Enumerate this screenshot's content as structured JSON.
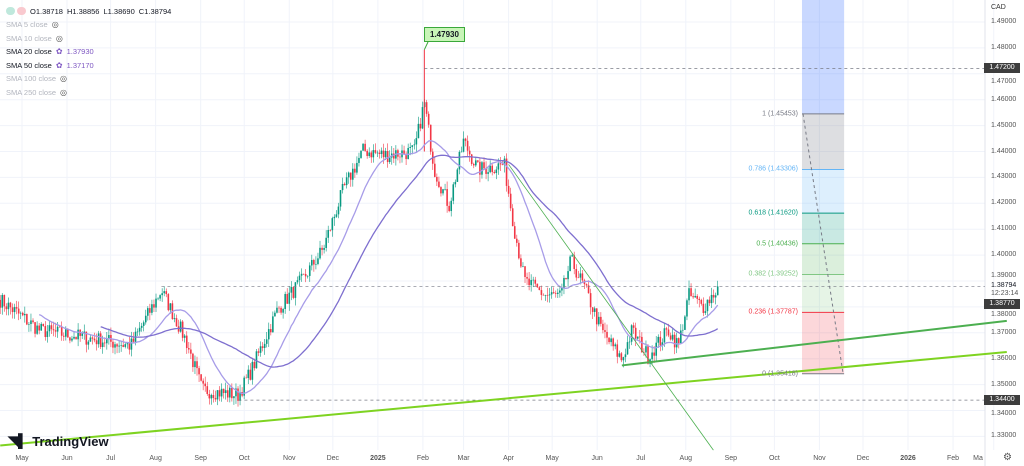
{
  "legend": {
    "ohlc": {
      "open": "O1.38718",
      "high": "H1.38856",
      "low": "L1.38690",
      "close": "C1.38794"
    },
    "indicators": [
      {
        "label": "SMA 5 close",
        "value": "",
        "visible": false
      },
      {
        "label": "SMA 10 close",
        "value": "",
        "visible": false
      },
      {
        "label": "SMA 20 close",
        "value": "1.37930",
        "visible": true
      },
      {
        "label": "SMA 50 close",
        "value": "1.37170",
        "visible": true
      },
      {
        "label": "SMA 100 close",
        "value": "",
        "visible": false
      },
      {
        "label": "SMA 250 close",
        "value": "",
        "visible": false
      }
    ]
  },
  "logo": "TradingView",
  "currency": "CAD",
  "callout": "1.47930",
  "price_axis": {
    "ticks": [
      "1.49000",
      "1.48000",
      "1.47000",
      "1.46000",
      "1.45000",
      "1.44000",
      "1.43000",
      "1.42000",
      "1.41000",
      "1.40000",
      "1.39000",
      "1.38000",
      "1.37000",
      "1.36000",
      "1.35000",
      "1.34000",
      "1.33000"
    ],
    "markers": {
      "high_line": "1.47200",
      "last_price": "1.38794",
      "countdown": "12:23:14",
      "sma": "1.38770",
      "low_line": "1.34400"
    }
  },
  "time_axis": [
    "May",
    "Jun",
    "Jul",
    "Aug",
    "Sep",
    "Oct",
    "Nov",
    "Dec",
    "2025",
    "Feb",
    "Mar",
    "Apr",
    "May",
    "Jun",
    "Jul",
    "Aug",
    "Sep",
    "Oct",
    "Nov",
    "Dec",
    "2026",
    "Feb",
    "Ma"
  ],
  "colors": {
    "up": "#089981",
    "down": "#f23645",
    "sma20": "#a79ce8",
    "sma50": "#7e6fcf",
    "trend_light": "#7ed321",
    "trend_dark": "#4caf50"
  },
  "fib": [
    {
      "label": "1 (1.45453)",
      "level": 1.45453,
      "color": "#787b86",
      "fill": "rgba(120,123,134,0.25)"
    },
    {
      "label": "0.786 (1.43306)",
      "level": 1.43306,
      "color": "#64b5f6",
      "fill": "rgba(100,181,246,0.22)"
    },
    {
      "label": "0.618 (1.41620)",
      "level": 1.4162,
      "color": "#089981",
      "fill": "rgba(8,153,129,0.22)"
    },
    {
      "label": "0.5 (1.40436)",
      "level": 1.40436,
      "color": "#4caf50",
      "fill": "rgba(76,175,80,0.2)"
    },
    {
      "label": "0.382 (1.39252)",
      "level": 1.39252,
      "color": "#81c784",
      "fill": "rgba(129,199,132,0.2)"
    },
    {
      "label": "0.236 (1.37787)",
      "level": 1.37787,
      "color": "#f23645",
      "fill": "rgba(242,54,69,0.2)"
    },
    {
      "label": "0 (1.35418)",
      "level": 1.35418,
      "color": "#787b86",
      "fill": ""
    }
  ],
  "chart_data": {
    "type": "candlestick",
    "symbol_quote": "CAD",
    "ylim": [
      1.325,
      1.495
    ],
    "xlim": [
      "2024-04-16",
      "2026-03-10"
    ],
    "price_path": [
      [
        "2024-04-16",
        1.3827
      ],
      [
        "2024-05-13",
        1.371
      ],
      [
        "2024-06-24",
        1.3672
      ],
      [
        "2024-07-15",
        1.365
      ],
      [
        "2024-08-05",
        1.3865
      ],
      [
        "2024-08-22",
        1.367
      ],
      [
        "2024-09-02",
        1.348
      ],
      [
        "2024-09-27",
        1.346
      ],
      [
        "2024-10-06",
        1.3556
      ],
      [
        "2024-10-24",
        1.379
      ],
      [
        "2024-11-10",
        1.3904
      ],
      [
        "2024-11-24",
        1.402
      ],
      [
        "2024-12-08",
        1.425
      ],
      [
        "2024-12-22",
        1.4405
      ],
      [
        "2025-01-05",
        1.4386
      ],
      [
        "2025-01-26",
        1.44
      ],
      [
        "2025-02-02",
        1.459
      ],
      [
        "2025-02-09",
        1.433
      ],
      [
        "2025-02-19",
        1.419
      ],
      [
        "2025-03-01",
        1.444
      ],
      [
        "2025-03-11",
        1.433
      ],
      [
        "2025-03-29",
        1.435
      ],
      [
        "2025-04-05",
        1.41
      ],
      [
        "2025-04-12",
        1.39
      ],
      [
        "2025-04-26",
        1.3846
      ],
      [
        "2025-05-07",
        1.384
      ],
      [
        "2025-05-14",
        1.398
      ],
      [
        "2025-05-24",
        1.3865
      ],
      [
        "2025-06-04",
        1.371
      ],
      [
        "2025-06-18",
        1.3595
      ],
      [
        "2025-06-25",
        1.371
      ],
      [
        "2025-07-06",
        1.361
      ],
      [
        "2025-07-20",
        1.371
      ],
      [
        "2025-07-27",
        1.365
      ],
      [
        "2025-08-03",
        1.3846
      ],
      [
        "2025-08-13",
        1.38
      ],
      [
        "2025-08-24",
        1.3879
      ]
    ],
    "horizontal_lines": [
      {
        "price": 1.472,
        "from": "2025-02-02"
      },
      {
        "price": 1.344,
        "from": "2024-09-27"
      },
      {
        "price": 1.38794,
        "from": "2024-08-05"
      }
    ],
    "trendlines": [
      {
        "from": [
          "2024-04-16",
          1.3265
        ],
        "to": [
          "2026-03-10",
          1.3626
        ],
        "color": "trend_light"
      },
      {
        "from": [
          "2025-06-18",
          1.3574
        ],
        "to": [
          "2026-03-10",
          1.3746
        ],
        "color": "trend_dark"
      },
      {
        "from": [
          "2025-04-01",
          1.435
        ],
        "to": [
          "2025-08-20",
          1.3247
        ],
        "color": "trend_dark"
      }
    ],
    "fib_range": {
      "from": "2025-10-20",
      "to": "2025-11-18"
    },
    "grid": true
  }
}
